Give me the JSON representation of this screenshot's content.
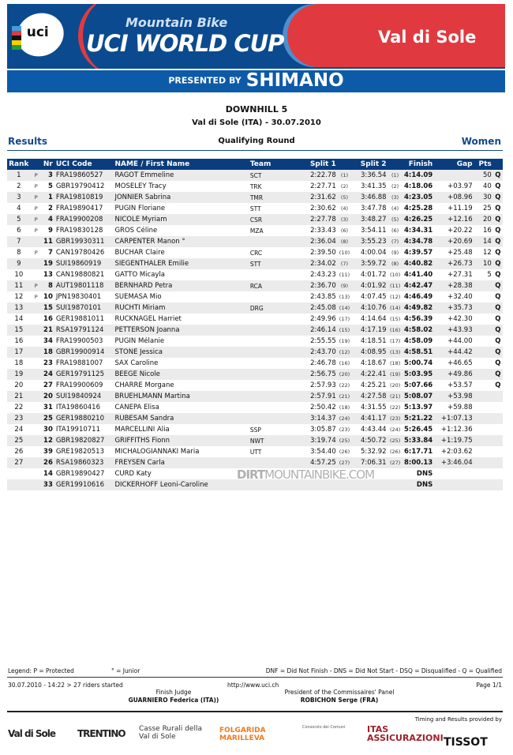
{
  "banner": {
    "logo": "uci",
    "line1": "Mountain Bike",
    "line2": "UCI WORLD CUP",
    "venue": "Val di Sole",
    "presented": "PRESENTED BY",
    "sponsor": "SHIMANO"
  },
  "event": {
    "title": "DOWNHILL 5",
    "subtitle": "Val di Sole (ITA) - 30.07.2010",
    "results": "Results",
    "round": "Qualifying Round",
    "category": "Women"
  },
  "table": {
    "headers": [
      "Rank",
      "Nr",
      "UCI Code",
      "NAME / First Name",
      "Team",
      "Split 1",
      "Split 2",
      "Finish",
      "Gap",
      "Pts"
    ],
    "rows": [
      [
        "1",
        "P",
        "3",
        "FRA19860527",
        "RAGOT Emmeline",
        "SCT",
        "2:22.78",
        "(1)",
        "3:36.54",
        "(1)",
        "4:14.09",
        "",
        "50",
        "Q"
      ],
      [
        "2",
        "P",
        "5",
        "GBR19790412",
        "MOSELEY Tracy",
        "TRK",
        "2:27.71",
        "(2)",
        "3:41.35",
        "(2)",
        "4:18.06",
        "+03.97",
        "40",
        "Q"
      ],
      [
        "3",
        "P",
        "1",
        "FRA19810819",
        "JONNIER Sabrina",
        "TMR",
        "2:31.62",
        "(5)",
        "3:46.88",
        "(3)",
        "4:23.05",
        "+08.96",
        "30",
        "Q"
      ],
      [
        "4",
        "P",
        "2",
        "FRA19890417",
        "PUGIN Floriane",
        "STT",
        "2:30.62",
        "(4)",
        "3:47.78",
        "(4)",
        "4:25.28",
        "+11.19",
        "25",
        "Q"
      ],
      [
        "5",
        "P",
        "4",
        "FRA19900208",
        "NICOLE Myriam",
        "CSR",
        "2:27.78",
        "(3)",
        "3:48.27",
        "(5)",
        "4:26.25",
        "+12.16",
        "20",
        "Q"
      ],
      [
        "6",
        "P",
        "9",
        "FRA19830128",
        "GROS Céline",
        "MZA",
        "2:33.43",
        "(6)",
        "3:54.11",
        "(6)",
        "4:34.31",
        "+20.22",
        "16",
        "Q"
      ],
      [
        "7",
        "",
        "11",
        "GBR19930311",
        "CARPENTER Manon °",
        "",
        "2:36.04",
        "(8)",
        "3:55.23",
        "(7)",
        "4:34.78",
        "+20.69",
        "14",
        "Q"
      ],
      [
        "8",
        "P",
        "7",
        "CAN19780426",
        "BUCHAR Claire",
        "CRC",
        "2:39.50",
        "(10)",
        "4:00.04",
        "(9)",
        "4:39.57",
        "+25.48",
        "12",
        "Q"
      ],
      [
        "9",
        "",
        "19",
        "SUI19860919",
        "SIEGENTHALER Emilie",
        "STT",
        "2:34.02",
        "(7)",
        "3:59.72",
        "(8)",
        "4:40.82",
        "+26.73",
        "10",
        "Q"
      ],
      [
        "10",
        "",
        "13",
        "CAN19880821",
        "GATTO Micayla",
        "",
        "2:43.23",
        "(11)",
        "4:01.72",
        "(10)",
        "4:41.40",
        "+27.31",
        "5",
        "Q"
      ],
      [
        "11",
        "P",
        "8",
        "AUT19801118",
        "BERNHARD Petra",
        "RCA",
        "2:36.70",
        "(9)",
        "4:01.92",
        "(11)",
        "4:42.47",
        "+28.38",
        "",
        "Q"
      ],
      [
        "12",
        "P",
        "10",
        "JPN19830401",
        "SUEMASA Mio",
        "",
        "2:43.85",
        "(13)",
        "4:07.45",
        "(12)",
        "4:46.49",
        "+32.40",
        "",
        "Q"
      ],
      [
        "13",
        "",
        "15",
        "SUI19870101",
        "RUCHTI Miriam",
        "DRG",
        "2:45.08",
        "(14)",
        "4:10.76",
        "(14)",
        "4:49.82",
        "+35.73",
        "",
        "Q"
      ],
      [
        "14",
        "",
        "16",
        "GER19881011",
        "RUCKNAGEL Harriet",
        "",
        "2:49.96",
        "(17)",
        "4:14.64",
        "(15)",
        "4:56.39",
        "+42.30",
        "",
        "Q"
      ],
      [
        "15",
        "",
        "21",
        "RSA19791124",
        "PETTERSON Joanna",
        "",
        "2:46.14",
        "(15)",
        "4:17.19",
        "(16)",
        "4:58.02",
        "+43.93",
        "",
        "Q"
      ],
      [
        "16",
        "",
        "34",
        "FRA19900503",
        "PUGIN Mélanie",
        "",
        "2:55.55",
        "(19)",
        "4:18.51",
        "(17)",
        "4:58.09",
        "+44.00",
        "",
        "Q"
      ],
      [
        "17",
        "",
        "18",
        "GBR19900914",
        "STONE Jessica",
        "",
        "2:43.70",
        "(12)",
        "4:08.95",
        "(13)",
        "4:58.51",
        "+44.42",
        "",
        "Q"
      ],
      [
        "18",
        "",
        "23",
        "FRA19881007",
        "SAX Caroline",
        "",
        "2:46.78",
        "(16)",
        "4:18.67",
        "(18)",
        "5:00.74",
        "+46.65",
        "",
        "Q"
      ],
      [
        "19",
        "",
        "24",
        "GER19791125",
        "BEEGE Nicole",
        "",
        "2:56.75",
        "(20)",
        "4:22.41",
        "(19)",
        "5:03.95",
        "+49.86",
        "",
        "Q"
      ],
      [
        "20",
        "",
        "27",
        "FRA19900609",
        "CHARRE Morgane",
        "",
        "2:57.93",
        "(22)",
        "4:25.21",
        "(20)",
        "5:07.66",
        "+53.57",
        "",
        "Q"
      ],
      [
        "21",
        "",
        "20",
        "SUI19840924",
        "BRUEHLMANN Martina",
        "",
        "2:57.91",
        "(21)",
        "4:27.58",
        "(21)",
        "5:08.07",
        "+53.98",
        "",
        ""
      ],
      [
        "22",
        "",
        "31",
        "ITA19860416",
        "CANEPA Elisa",
        "",
        "2:50.42",
        "(18)",
        "4:31.55",
        "(22)",
        "5:13.97",
        "+59.88",
        "",
        ""
      ],
      [
        "23",
        "",
        "25",
        "GER19880210",
        "RUBESAM Sandra",
        "",
        "3:14.37",
        "(24)",
        "4:41.17",
        "(23)",
        "5:21.22",
        "+1:07.13",
        "",
        ""
      ],
      [
        "24",
        "",
        "30",
        "ITA19910711",
        "MARCELLINI Alia",
        "SSP",
        "3:05.87",
        "(23)",
        "4:43.44",
        "(24)",
        "5:26.45",
        "+1:12.36",
        "",
        ""
      ],
      [
        "25",
        "",
        "12",
        "GBR19820827",
        "GRIFFITHS Fionn",
        "NWT",
        "3:19.74",
        "(25)",
        "4:50.72",
        "(25)",
        "5:33.84",
        "+1:19.75",
        "",
        ""
      ],
      [
        "26",
        "",
        "39",
        "GRE19820513",
        "MICHALOGIANNAKI Maria",
        "UTT",
        "3:54.40",
        "(26)",
        "5:32.92",
        "(26)",
        "6:17.71",
        "+2:03.62",
        "",
        ""
      ],
      [
        "27",
        "",
        "26",
        "RSA19860323",
        "FREYSEN Carla",
        "",
        "4:57.25",
        "(27)",
        "7:06.31",
        "(27)",
        "8:00.13",
        "+3:46.04",
        "",
        ""
      ],
      [
        "",
        "",
        "14",
        "GBR19890427",
        "CURD Katy",
        "",
        "",
        "",
        "",
        "",
        "DNS",
        "",
        "",
        ""
      ],
      [
        "",
        "",
        "33",
        "GER19910616",
        "DICKERHOFF Leoni-Caroline",
        "",
        "",
        "",
        "",
        "",
        "DNS",
        "",
        "",
        ""
      ]
    ]
  },
  "watermark": {
    "bold": "DIRT",
    "light": "MOUNTAINBIKE.COM"
  },
  "footer": {
    "legend_left": "Legend: P = Protected",
    "legend_junior": "° = Junior",
    "legend_right": "DNF = Did Not Finish - DNS = Did Not Start - DSQ = Disqualified - Q = Qualified",
    "started": "30.07.2010 - 14:22 > 27 riders started",
    "url": "http://www.uci.ch",
    "page": "Page 1/1",
    "judge_label": "Finish Judge",
    "judge_name": "GUARNIERO Federica (ITA))",
    "president_label": "President of the Commissaires' Panel",
    "president_name": "ROBICHON Serge (FRA)",
    "timing": "Timing and Results provided by"
  },
  "sponsors": [
    "Val di Sole",
    "TRENTINO",
    "Casse Rurali della Val di Sole",
    "FOLGARIDA MARILLEVA",
    "Consorzio dei Comuni",
    "ITAS ASSICURAZIONI",
    "TISSOT"
  ],
  "colors": {
    "header_blue": "#0a3d7d",
    "accent_red": "#e03a40",
    "title_blue": "#124a8a",
    "row_alt": "#ebebeb"
  }
}
